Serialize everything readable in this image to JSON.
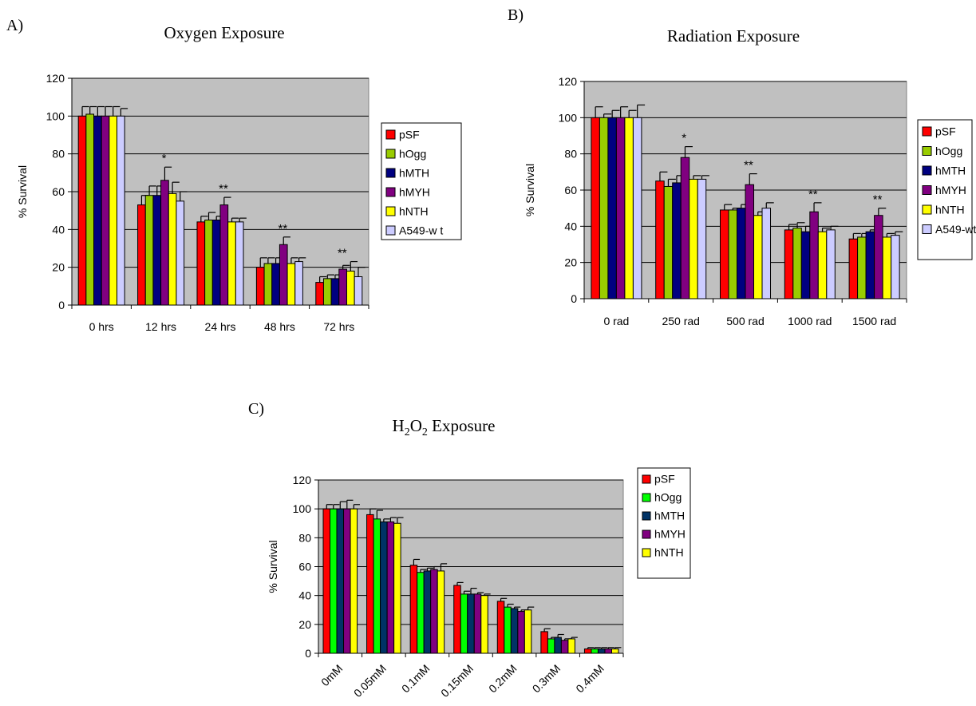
{
  "chart_data": [
    {
      "type": "bar",
      "panel": "A)",
      "title": "Oxygen Exposure",
      "xlabel": "",
      "ylabel": "% Survival",
      "ylim": [
        0,
        120
      ],
      "yticks": [
        0,
        20,
        40,
        60,
        80,
        100,
        120
      ],
      "grid": true,
      "legend": "right",
      "categories": [
        "0 hrs",
        "12 hrs",
        "24 hrs",
        "48 hrs",
        "72 hrs"
      ],
      "series": [
        {
          "name": "pSF",
          "color": "#ff0000",
          "values": [
            100,
            53,
            44,
            20,
            12
          ],
          "errors": [
            5,
            5,
            3,
            5,
            3
          ]
        },
        {
          "name": "hOgg",
          "color": "#99cc00",
          "values": [
            101,
            58,
            45,
            22,
            14
          ],
          "errors": [
            4,
            5,
            4,
            3,
            2
          ]
        },
        {
          "name": "hMTH",
          "color": "#000080",
          "values": [
            100,
            58,
            45,
            22,
            14
          ],
          "errors": [
            5,
            5,
            2,
            3,
            2
          ]
        },
        {
          "name": "hMYH",
          "color": "#800080",
          "values": [
            100,
            66,
            53,
            32,
            19
          ],
          "errors": [
            5,
            7,
            4,
            4,
            2
          ]
        },
        {
          "name": "hNTH",
          "color": "#ffff00",
          "values": [
            100,
            59,
            44,
            22,
            18
          ],
          "errors": [
            5,
            6,
            2,
            3,
            5
          ]
        },
        {
          "name": "A549-w t",
          "color": "#ccccff",
          "values": [
            100,
            55,
            44,
            23,
            15
          ],
          "errors": [
            4,
            5,
            2,
            2,
            5
          ]
        }
      ],
      "annotations": [
        {
          "category": "12 hrs",
          "text": "*"
        },
        {
          "category": "24 hrs",
          "text": "**"
        },
        {
          "category": "48 hrs",
          "text": "**"
        },
        {
          "category": "72 hrs",
          "text": "**"
        }
      ]
    },
    {
      "type": "bar",
      "panel": "B)",
      "title": "Radiation Exposure",
      "xlabel": "",
      "ylabel": "% Survival",
      "ylim": [
        0,
        120
      ],
      "yticks": [
        0,
        20,
        40,
        60,
        80,
        100,
        120
      ],
      "grid": true,
      "legend": "right",
      "categories": [
        "0 rad",
        "250 rad",
        "500 rad",
        "1000 rad",
        "1500 rad"
      ],
      "series": [
        {
          "name": "pSF",
          "color": "#ff0000",
          "values": [
            100,
            65,
            49,
            38,
            33
          ],
          "errors": [
            6,
            5,
            3,
            3,
            3
          ]
        },
        {
          "name": "hOgg",
          "color": "#99cc00",
          "values": [
            100,
            62,
            49,
            39,
            34
          ],
          "errors": [
            2,
            4,
            1,
            3,
            2
          ]
        },
        {
          "name": "hMTH",
          "color": "#000080",
          "values": [
            100,
            64,
            50,
            37,
            37
          ],
          "errors": [
            4,
            4,
            2,
            3,
            1
          ]
        },
        {
          "name": "hMYH",
          "color": "#800080",
          "values": [
            100,
            78,
            63,
            48,
            46
          ],
          "errors": [
            6,
            6,
            6,
            5,
            4
          ]
        },
        {
          "name": "hNTH",
          "color": "#ffff00",
          "values": [
            100,
            66,
            46,
            37,
            34
          ],
          "errors": [
            4,
            2,
            2,
            2,
            2
          ]
        },
        {
          "name": "A549-wt",
          "color": "#ccccff",
          "values": [
            100,
            66,
            50,
            38,
            35
          ],
          "errors": [
            7,
            2,
            3,
            2,
            2
          ]
        }
      ],
      "annotations": [
        {
          "category": "250 rad",
          "text": "*"
        },
        {
          "category": "500 rad",
          "text": "**"
        },
        {
          "category": "1000 rad",
          "text": "**"
        },
        {
          "category": "1500 rad",
          "text": "**"
        }
      ]
    },
    {
      "type": "bar",
      "panel": "C)",
      "title": "H2O2 Exposure",
      "title_main": "H",
      "title_sub1": "2",
      "title_mid": "O",
      "title_sub2": "2",
      "title_tail": " Exposure",
      "xlabel": "",
      "ylabel": "% Survival",
      "ylim": [
        0,
        120
      ],
      "yticks": [
        0,
        20,
        40,
        60,
        80,
        100,
        120
      ],
      "grid": true,
      "legend": "right",
      "categories": [
        "0mM",
        "0.05mM",
        "0.1mM",
        "0.15mM",
        "0.2mM",
        "0.3mM",
        "0.4mM"
      ],
      "series": [
        {
          "name": "pSF",
          "color": "#ff0000",
          "values": [
            100,
            96,
            61,
            47,
            36,
            15,
            3
          ],
          "errors": [
            3,
            4,
            4,
            2,
            2,
            2,
            1
          ]
        },
        {
          "name": "hOgg",
          "color": "#00ff00",
          "values": [
            100,
            93,
            56,
            41,
            32,
            10,
            3
          ],
          "errors": [
            3,
            6,
            2,
            2,
            2,
            1,
            1
          ]
        },
        {
          "name": "hMTH",
          "color": "#003366",
          "values": [
            100,
            91,
            57,
            41,
            31,
            11,
            3
          ],
          "errors": [
            5,
            2,
            2,
            4,
            1,
            2,
            1
          ]
        },
        {
          "name": "hMYH",
          "color": "#800080",
          "values": [
            100,
            91,
            58,
            41,
            29,
            9,
            3
          ],
          "errors": [
            6,
            3,
            2,
            1,
            1,
            1,
            1
          ]
        },
        {
          "name": "hNTH",
          "color": "#ffff00",
          "values": [
            100,
            90,
            57,
            40,
            30,
            10,
            3
          ],
          "errors": [
            3,
            4,
            5,
            1,
            2,
            1,
            1
          ]
        }
      ],
      "annotations": []
    }
  ]
}
